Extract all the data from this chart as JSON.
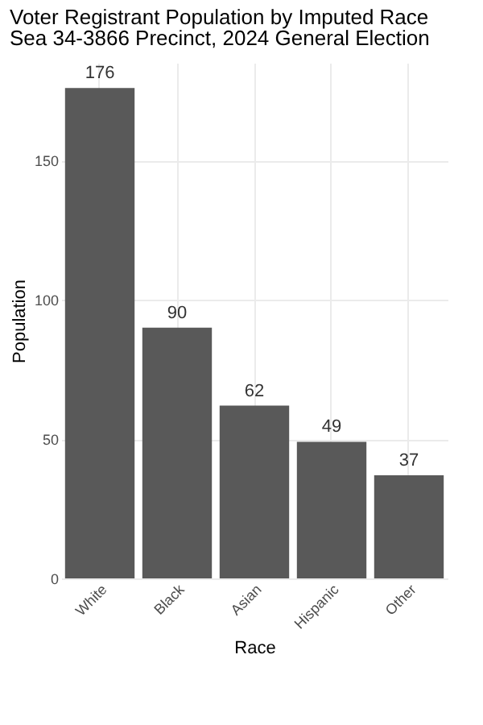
{
  "chart_data": {
    "type": "bar",
    "title": "Voter Registrant Population by Imputed Race",
    "subtitle": "Sea 34-3866 Precinct,  2024 General Election",
    "xlabel": "Race",
    "ylabel": "Population",
    "categories": [
      "White",
      "Black",
      "Asian",
      "Hispanic",
      "Other"
    ],
    "values": [
      176,
      90,
      62,
      49,
      37
    ],
    "color": "#595959",
    "data_labels": true,
    "ylim": [
      0,
      185
    ],
    "yticks": [
      0,
      50,
      100,
      150
    ],
    "grid": true
  }
}
